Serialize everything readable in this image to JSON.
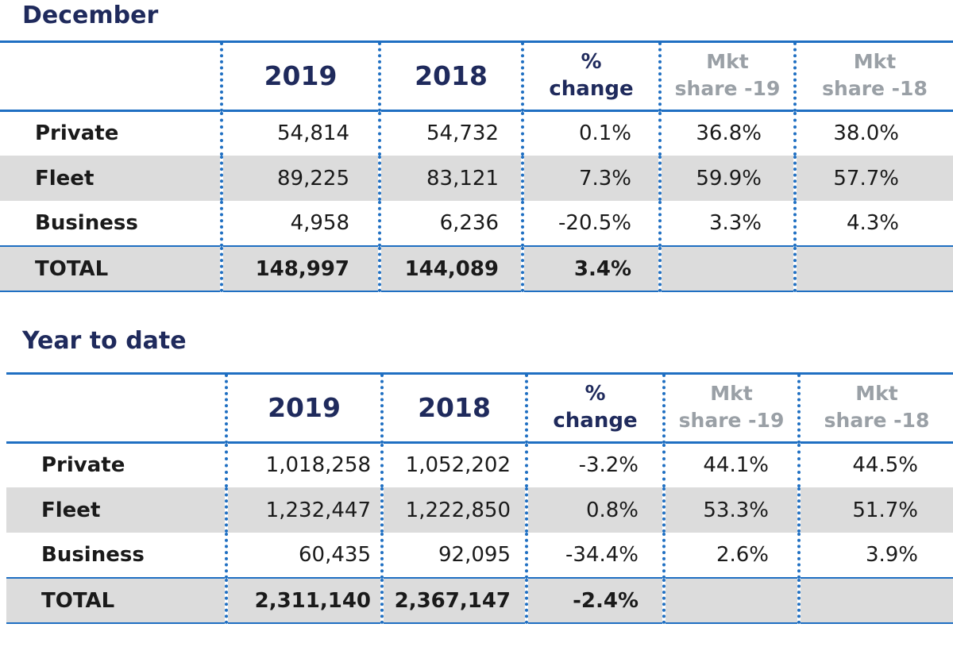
{
  "december": {
    "title": "December",
    "headers": {
      "y2019": "2019",
      "y2018": "2018",
      "pct_line1": "%",
      "pct_line2": "change",
      "mkt19_line1": "Mkt",
      "mkt19_line2": "share -19",
      "mkt18_line1": "Mkt",
      "mkt18_line2": "share -18"
    },
    "rows": [
      {
        "label": "Private",
        "v2019": "54,814",
        "v2018": "54,732",
        "pct": "0.1%",
        "mkt19": "36.8%",
        "mkt18": "38.0%"
      },
      {
        "label": "Fleet",
        "v2019": "89,225",
        "v2018": "83,121",
        "pct": "7.3%",
        "mkt19": "59.9%",
        "mkt18": "57.7%"
      },
      {
        "label": "Business",
        "v2019": "4,958",
        "v2018": "6,236",
        "pct": "-20.5%",
        "mkt19": "3.3%",
        "mkt18": "4.3%"
      },
      {
        "label": "TOTAL",
        "v2019": "148,997",
        "v2018": "144,089",
        "pct": "3.4%",
        "mkt19": "",
        "mkt18": ""
      }
    ]
  },
  "ytd": {
    "title": "Year to date",
    "headers": {
      "y2019": "2019",
      "y2018": "2018",
      "pct_line1": "%",
      "pct_line2": "change",
      "mkt19_line1": "Mkt",
      "mkt19_line2": "share -19",
      "mkt18_line1": "Mkt",
      "mkt18_line2": "share -18"
    },
    "rows": [
      {
        "label": "Private",
        "v2019": "1,018,258",
        "v2018": "1,052,202",
        "pct": "-3.2%",
        "mkt19": "44.1%",
        "mkt18": "44.5%"
      },
      {
        "label": "Fleet",
        "v2019": "1,232,447",
        "v2018": "1,222,850",
        "pct": "0.8%",
        "mkt19": "53.3%",
        "mkt18": "51.7%"
      },
      {
        "label": "Business",
        "v2019": "60,435",
        "v2018": "92,095",
        "pct": "-34.4%",
        "mkt19": "2.6%",
        "mkt18": "3.9%"
      },
      {
        "label": "TOTAL",
        "v2019": "2,311,140",
        "v2018": "2,367,147",
        "pct": "-2.4%",
        "mkt19": "",
        "mkt18": ""
      }
    ]
  },
  "colors": {
    "title": "#1f2a5c",
    "accent": "#1f6fc2",
    "muted": "#9aa0a6",
    "shade": "#dcdcdc"
  }
}
